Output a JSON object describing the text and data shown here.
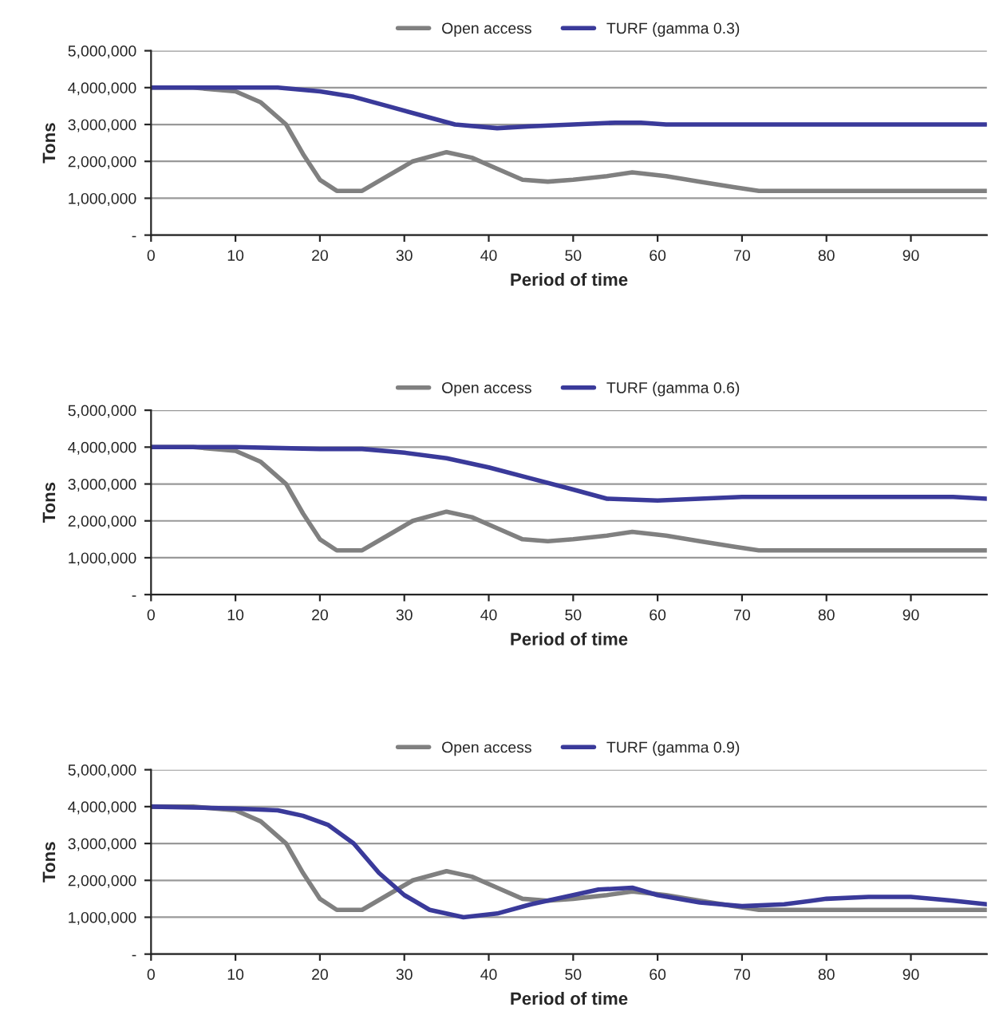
{
  "chart_data": [
    {
      "type": "line",
      "xlabel": "Period of time",
      "ylabel": "Tons",
      "xlim": [
        0,
        99
      ],
      "xticks": [
        0,
        10,
        20,
        30,
        40,
        50,
        60,
        70,
        80,
        90
      ],
      "ylim": [
        0,
        5000000
      ],
      "yticks": [
        {
          "value": 0,
          "label": "-"
        },
        {
          "value": 1000000,
          "label": "1,000,000"
        },
        {
          "value": 2000000,
          "label": "2,000,000"
        },
        {
          "value": 3000000,
          "label": "3,000,000"
        },
        {
          "value": 4000000,
          "label": "4,000,000"
        },
        {
          "value": 5000000,
          "label": "5,000,000"
        }
      ],
      "grid": "y",
      "legend": "top",
      "series": [
        {
          "name": "Open access",
          "color": "#808080",
          "x": [
            0,
            5,
            10,
            13,
            16,
            18,
            20,
            22,
            25,
            28,
            31,
            35,
            38,
            41,
            44,
            47,
            50,
            54,
            57,
            61,
            65,
            69,
            72,
            80,
            99
          ],
          "values": [
            4000000,
            4000000,
            3900000,
            3600000,
            3000000,
            2200000,
            1500000,
            1200000,
            1200000,
            1600000,
            2000000,
            2250000,
            2100000,
            1800000,
            1500000,
            1450000,
            1500000,
            1600000,
            1700000,
            1600000,
            1450000,
            1300000,
            1200000,
            1200000,
            1200000
          ]
        },
        {
          "name": "TURF (gamma 0.3)",
          "color": "#3a3a9a",
          "x": [
            0,
            10,
            15,
            20,
            24,
            28,
            32,
            36,
            41,
            45,
            50,
            55,
            58,
            61,
            70,
            99
          ],
          "values": [
            4000000,
            4000000,
            4000000,
            3900000,
            3750000,
            3500000,
            3250000,
            3000000,
            2900000,
            2950000,
            3000000,
            3050000,
            3050000,
            3000000,
            3000000,
            3000000
          ]
        }
      ]
    },
    {
      "type": "line",
      "xlabel": "Period of time",
      "ylabel": "Tons",
      "xlim": [
        0,
        99
      ],
      "xticks": [
        0,
        10,
        20,
        30,
        40,
        50,
        60,
        70,
        80,
        90
      ],
      "ylim": [
        0,
        5000000
      ],
      "yticks": [
        {
          "value": 0,
          "label": "-"
        },
        {
          "value": 1000000,
          "label": "1,000,000"
        },
        {
          "value": 2000000,
          "label": "2,000,000"
        },
        {
          "value": 3000000,
          "label": "3,000,000"
        },
        {
          "value": 4000000,
          "label": "4,000,000"
        },
        {
          "value": 5000000,
          "label": "5,000,000"
        }
      ],
      "grid": "y",
      "legend": "top",
      "series": [
        {
          "name": "Open access",
          "color": "#808080",
          "x": [
            0,
            5,
            10,
            13,
            16,
            18,
            20,
            22,
            25,
            28,
            31,
            35,
            38,
            41,
            44,
            47,
            50,
            54,
            57,
            61,
            65,
            69,
            72,
            80,
            99
          ],
          "values": [
            4000000,
            4000000,
            3900000,
            3600000,
            3000000,
            2200000,
            1500000,
            1200000,
            1200000,
            1600000,
            2000000,
            2250000,
            2100000,
            1800000,
            1500000,
            1450000,
            1500000,
            1600000,
            1700000,
            1600000,
            1450000,
            1300000,
            1200000,
            1200000,
            1200000
          ]
        },
        {
          "name": "TURF (gamma 0.6)",
          "color": "#3a3a9a",
          "x": [
            0,
            10,
            20,
            25,
            30,
            35,
            40,
            45,
            50,
            54,
            60,
            65,
            70,
            80,
            95,
            99
          ],
          "values": [
            4000000,
            4000000,
            3950000,
            3950000,
            3850000,
            3700000,
            3450000,
            3150000,
            2850000,
            2600000,
            2550000,
            2600000,
            2650000,
            2650000,
            2650000,
            2600000
          ]
        }
      ]
    },
    {
      "type": "line",
      "xlabel": "Period of time",
      "ylabel": "Tons",
      "xlim": [
        0,
        99
      ],
      "xticks": [
        0,
        10,
        20,
        30,
        40,
        50,
        60,
        70,
        80,
        90
      ],
      "ylim": [
        0,
        5000000
      ],
      "yticks": [
        {
          "value": 0,
          "label": "-"
        },
        {
          "value": 1000000,
          "label": "1,000,000"
        },
        {
          "value": 2000000,
          "label": "2,000,000"
        },
        {
          "value": 3000000,
          "label": "3,000,000"
        },
        {
          "value": 4000000,
          "label": "4,000,000"
        },
        {
          "value": 5000000,
          "label": "5,000,000"
        }
      ],
      "grid": "y",
      "legend": "top",
      "series": [
        {
          "name": "Open access",
          "color": "#808080",
          "x": [
            0,
            5,
            10,
            13,
            16,
            18,
            20,
            22,
            25,
            28,
            31,
            35,
            38,
            41,
            44,
            47,
            50,
            54,
            57,
            61,
            65,
            69,
            72,
            80,
            99
          ],
          "values": [
            4000000,
            4000000,
            3900000,
            3600000,
            3000000,
            2200000,
            1500000,
            1200000,
            1200000,
            1600000,
            2000000,
            2250000,
            2100000,
            1800000,
            1500000,
            1450000,
            1500000,
            1600000,
            1700000,
            1600000,
            1450000,
            1300000,
            1200000,
            1200000,
            1200000
          ]
        },
        {
          "name": "TURF (gamma 0.9)",
          "color": "#3a3a9a",
          "x": [
            0,
            10,
            15,
            18,
            21,
            24,
            27,
            30,
            33,
            37,
            41,
            45,
            50,
            53,
            57,
            60,
            65,
            70,
            75,
            80,
            85,
            90,
            95,
            99
          ],
          "values": [
            4000000,
            3950000,
            3900000,
            3750000,
            3500000,
            3000000,
            2200000,
            1600000,
            1200000,
            1000000,
            1100000,
            1350000,
            1600000,
            1750000,
            1800000,
            1600000,
            1400000,
            1300000,
            1350000,
            1500000,
            1550000,
            1550000,
            1450000,
            1350000
          ]
        }
      ]
    }
  ]
}
